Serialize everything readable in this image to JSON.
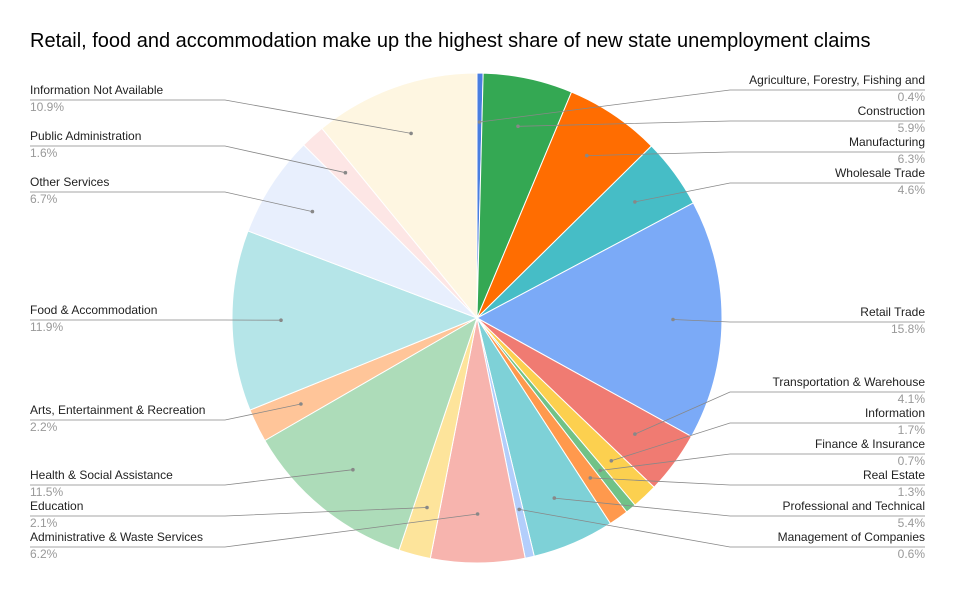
{
  "chart_data": {
    "type": "pie",
    "title": "Retail, food and accommodation make up the highest share of new state unemployment claims",
    "slices": [
      {
        "name": "Agriculture, Forestry, Fishing and",
        "value": 0.4,
        "label": "0.4%",
        "color": "#4a7ee0",
        "side": "right"
      },
      {
        "name": "Construction",
        "value": 5.9,
        "label": "5.9%",
        "color": "#34a853",
        "side": "right"
      },
      {
        "name": "Manufacturing",
        "value": 6.3,
        "label": "6.3%",
        "color": "#ff6d01",
        "side": "right"
      },
      {
        "name": "Wholesale Trade",
        "value": 4.6,
        "label": "4.6%",
        "color": "#46bdc6",
        "side": "right"
      },
      {
        "name": "Retail Trade",
        "value": 15.8,
        "label": "15.8%",
        "color": "#7baaf7",
        "side": "right"
      },
      {
        "name": "Transportation & Warehouse",
        "value": 4.1,
        "label": "4.1%",
        "color": "#f07b72",
        "side": "right"
      },
      {
        "name": "Information",
        "value": 1.7,
        "label": "1.7%",
        "color": "#fcd04f",
        "side": "right"
      },
      {
        "name": "Finance & Insurance",
        "value": 0.7,
        "label": "0.7%",
        "color": "#71c287",
        "side": "right"
      },
      {
        "name": "Real Estate",
        "value": 1.3,
        "label": "1.3%",
        "color": "#ff994d",
        "side": "right"
      },
      {
        "name": "Professional and Technical",
        "value": 5.4,
        "label": "5.4%",
        "color": "#7ed1d7",
        "side": "right"
      },
      {
        "name": "Management of Companies",
        "value": 0.6,
        "label": "0.6%",
        "color": "#b3cefb",
        "side": "right"
      },
      {
        "name": "Administrative & Waste Services",
        "value": 6.2,
        "label": "6.2%",
        "color": "#f7b4ae",
        "side": "left"
      },
      {
        "name": "Education",
        "value": 2.1,
        "label": "2.1%",
        "color": "#fde49b",
        "side": "left"
      },
      {
        "name": "Health & Social Assistance",
        "value": 11.5,
        "label": "11.5%",
        "color": "#addcb9",
        "side": "left"
      },
      {
        "name": "Arts, Entertainment & Recreation",
        "value": 2.2,
        "label": "2.2%",
        "color": "#ffc599",
        "side": "left"
      },
      {
        "name": "Food & Accommodation",
        "value": 11.9,
        "label": "11.9%",
        "color": "#b5e5e8",
        "side": "left"
      },
      {
        "name": "Other Services",
        "value": 6.7,
        "label": "6.7%",
        "color": "#e8effd",
        "side": "left"
      },
      {
        "name": "Public Administration",
        "value": 1.6,
        "label": "1.6%",
        "color": "#fde6e5",
        "side": "left"
      },
      {
        "name": "Information Not Available",
        "value": 10.9,
        "label": "10.9%",
        "color": "#fef6e1",
        "side": "left"
      }
    ],
    "legend": "labels-outside",
    "start_angle": "12 o'clock",
    "direction": "clockwise"
  }
}
